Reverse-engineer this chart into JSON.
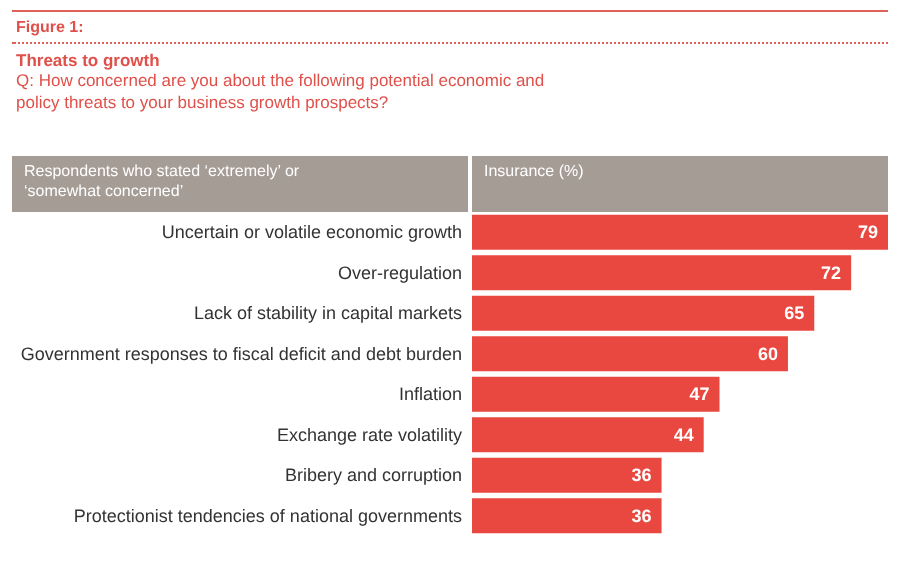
{
  "chart_data": {
    "type": "bar",
    "orientation": "horizontal",
    "title": "Figure 1:",
    "subtitle": "Threats to growth",
    "annotations": [
      "Q: How concerned are you about the following potential economic and policy threats to your business growth prospects?"
    ],
    "ylabel": "Respondents who stated ‘extremely’ or ‘somewhat concerned’",
    "xlabel": "Insurance (%)",
    "categories": [
      "Uncertain or volatile economic growth",
      "Over-regulation",
      "Lack of stability in capital markets",
      "Government responses to fiscal deficit and debt burden",
      "Inflation",
      "Exchange rate volatility",
      "Bribery and corruption",
      "Protectionist tendencies of national governments"
    ],
    "values": [
      79,
      72,
      65,
      60,
      47,
      44,
      36,
      36
    ],
    "color": "#e8483f",
    "data_labels": true
  }
}
